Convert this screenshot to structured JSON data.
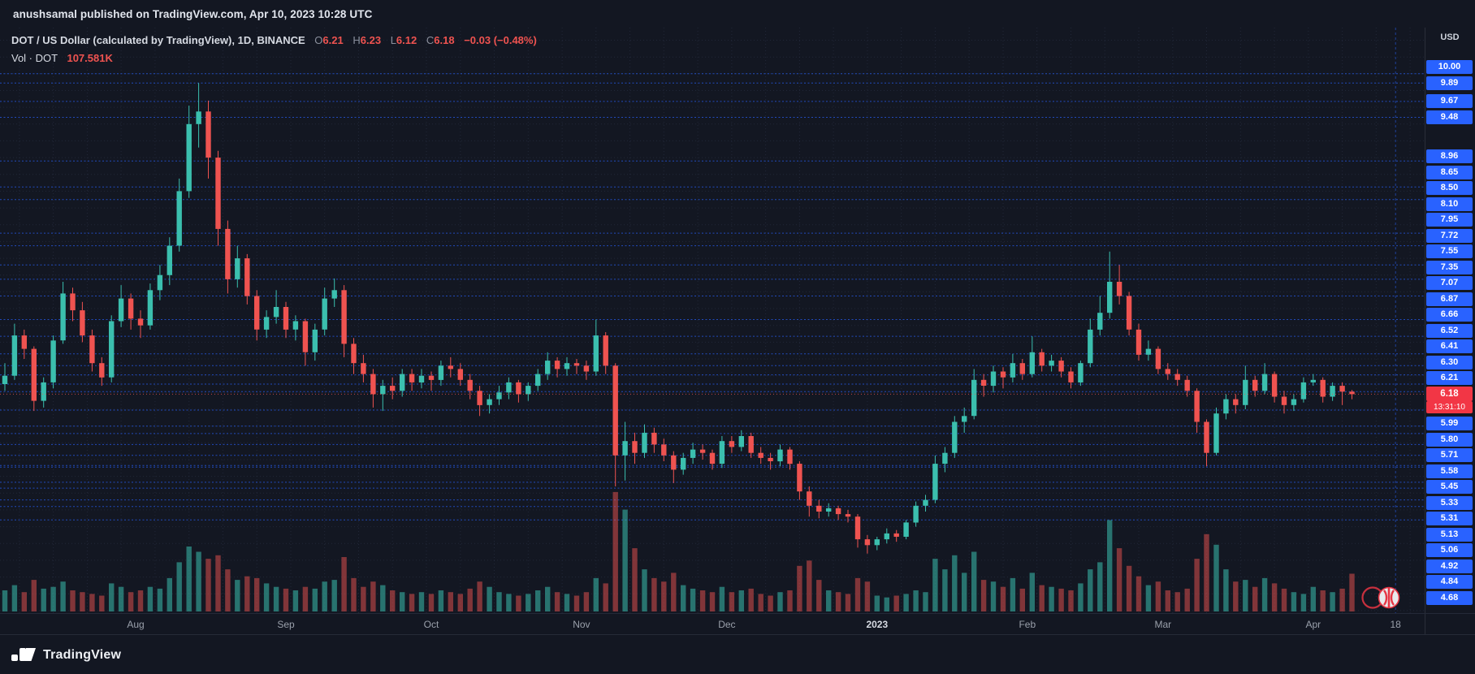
{
  "topbar": {
    "text": "anushsamal published on TradingView.com, Apr 10, 2023 10:28 UTC"
  },
  "legend": {
    "title": "DOT / US Dollar (calculated by TradingView), 1D, BINANCE",
    "ohlc": [
      {
        "k": "O",
        "v": "6.21"
      },
      {
        "k": "H",
        "v": "6.23"
      },
      {
        "k": "L",
        "v": "6.12"
      },
      {
        "k": "C",
        "v": "6.18"
      }
    ],
    "change": "−0.03 (−0.48%)",
    "vol_label": "Vol · DOT",
    "vol_value": "107.581K"
  },
  "axis": {
    "currency": "USD",
    "current_price": "6.18",
    "countdown": "13:31:10"
  },
  "footer": {
    "brand": "TradingView"
  },
  "colors": {
    "background": "#131722",
    "grid": "rgba(48,56,78,0.5)",
    "up": "#3bbfae",
    "down": "#ef5350",
    "vol_up": "rgba(59,191,174,0.55)",
    "vol_down": "rgba(239,83,80,0.5)",
    "level_line": "#2962ff",
    "label_bg": "#2962ff",
    "current_bg": "#f23645",
    "axis_border": "#2a2e39"
  },
  "chart_data": {
    "type": "candlestick",
    "title": "DOT / US Dollar (calculated by TradingView), 1D, BINANCE",
    "symbol": "DOT/USD",
    "interval": "1D",
    "exchange": "BINANCE",
    "legend_ohlc": {
      "open": 6.21,
      "high": 6.23,
      "low": 6.12,
      "close": 6.18,
      "change": -0.03,
      "change_pct": -0.48
    },
    "current_price": 6.18,
    "ylim": [
      3.57,
      10.55
    ],
    "x_slots": 147,
    "volume_height": 150,
    "price_line_levels": [
      10.0,
      9.89,
      9.67,
      9.48,
      8.96,
      8.65,
      8.5,
      8.1,
      7.95,
      7.72,
      7.55,
      7.35,
      7.07,
      6.87,
      6.66,
      6.52,
      6.41,
      6.3,
      6.21,
      5.99,
      5.8,
      5.71,
      5.58,
      5.45,
      5.33,
      5.31,
      5.13,
      5.06,
      4.92,
      4.84,
      4.68
    ],
    "x_ticks": [
      {
        "label": "Aug",
        "i": 13.5
      },
      {
        "label": "Sep",
        "i": 29
      },
      {
        "label": "Oct",
        "i": 44
      },
      {
        "label": "Nov",
        "i": 59.5
      },
      {
        "label": "Dec",
        "i": 74.5
      },
      {
        "label": "2023",
        "i": 90,
        "major": true
      },
      {
        "label": "Feb",
        "i": 105.5
      },
      {
        "label": "Mar",
        "i": 119.5
      },
      {
        "label": "Apr",
        "i": 135
      },
      {
        "label": "18",
        "i": 143.5,
        "vline": true
      }
    ],
    "candles": [
      [
        6.3,
        6.55,
        6.22,
        6.4
      ],
      [
        6.4,
        7.02,
        6.35,
        6.88
      ],
      [
        6.88,
        6.95,
        6.6,
        6.72
      ],
      [
        6.72,
        6.75,
        5.98,
        6.1
      ],
      [
        6.1,
        6.38,
        6.02,
        6.32
      ],
      [
        6.32,
        6.88,
        6.25,
        6.82
      ],
      [
        6.82,
        7.52,
        6.78,
        7.38
      ],
      [
        7.38,
        7.45,
        7.05,
        7.18
      ],
      [
        7.18,
        7.28,
        6.8,
        6.88
      ],
      [
        6.88,
        6.95,
        6.45,
        6.55
      ],
      [
        6.55,
        6.62,
        6.28,
        6.38
      ],
      [
        6.38,
        7.12,
        6.32,
        7.05
      ],
      [
        7.05,
        7.48,
        6.98,
        7.32
      ],
      [
        7.32,
        7.38,
        6.95,
        7.08
      ],
      [
        7.08,
        7.18,
        6.85,
        7.0
      ],
      [
        7.0,
        7.5,
        6.95,
        7.42
      ],
      [
        7.42,
        7.72,
        7.3,
        7.6
      ],
      [
        7.6,
        8.05,
        7.48,
        7.95
      ],
      [
        7.95,
        8.75,
        7.88,
        8.6
      ],
      [
        8.6,
        9.62,
        8.52,
        9.4
      ],
      [
        9.4,
        9.89,
        9.12,
        9.55
      ],
      [
        9.55,
        9.68,
        8.75,
        9.0
      ],
      [
        9.0,
        9.08,
        7.95,
        8.15
      ],
      [
        8.15,
        8.25,
        7.38,
        7.55
      ],
      [
        7.55,
        7.95,
        7.45,
        7.8
      ],
      [
        7.8,
        7.85,
        7.25,
        7.35
      ],
      [
        7.35,
        7.42,
        6.82,
        6.95
      ],
      [
        6.95,
        7.18,
        6.85,
        7.1
      ],
      [
        7.1,
        7.42,
        7.02,
        7.22
      ],
      [
        7.22,
        7.28,
        6.85,
        6.95
      ],
      [
        6.95,
        7.12,
        6.82,
        7.05
      ],
      [
        7.05,
        7.08,
        6.52,
        6.68
      ],
      [
        6.68,
        7.02,
        6.58,
        6.95
      ],
      [
        6.95,
        7.45,
        6.88,
        7.32
      ],
      [
        7.32,
        7.56,
        7.22,
        7.42
      ],
      [
        7.42,
        7.48,
        6.62,
        6.78
      ],
      [
        6.78,
        6.85,
        6.42,
        6.55
      ],
      [
        6.55,
        6.65,
        6.32,
        6.42
      ],
      [
        6.42,
        6.48,
        6.02,
        6.18
      ],
      [
        6.18,
        6.35,
        5.98,
        6.28
      ],
      [
        6.28,
        6.38,
        6.12,
        6.22
      ],
      [
        6.22,
        6.48,
        6.15,
        6.42
      ],
      [
        6.42,
        6.48,
        6.22,
        6.32
      ],
      [
        6.32,
        6.48,
        6.25,
        6.4
      ],
      [
        6.4,
        6.45,
        6.22,
        6.35
      ],
      [
        6.35,
        6.58,
        6.28,
        6.52
      ],
      [
        6.52,
        6.62,
        6.38,
        6.48
      ],
      [
        6.48,
        6.55,
        6.28,
        6.35
      ],
      [
        6.35,
        6.42,
        6.12,
        6.22
      ],
      [
        6.22,
        6.28,
        5.92,
        6.05
      ],
      [
        6.05,
        6.18,
        5.95,
        6.12
      ],
      [
        6.12,
        6.28,
        6.05,
        6.2
      ],
      [
        6.2,
        6.38,
        6.12,
        6.32
      ],
      [
        6.32,
        6.35,
        6.08,
        6.18
      ],
      [
        6.18,
        6.32,
        6.1,
        6.28
      ],
      [
        6.28,
        6.48,
        6.22,
        6.42
      ],
      [
        6.42,
        6.68,
        6.35,
        6.58
      ],
      [
        6.58,
        6.62,
        6.38,
        6.48
      ],
      [
        6.48,
        6.62,
        6.4,
        6.55
      ],
      [
        6.55,
        6.6,
        6.42,
        6.52
      ],
      [
        6.52,
        6.58,
        6.35,
        6.45
      ],
      [
        6.45,
        7.07,
        6.4,
        6.88
      ],
      [
        6.88,
        6.92,
        6.42,
        6.52
      ],
      [
        6.52,
        6.55,
        5.08,
        5.45
      ],
      [
        5.45,
        5.85,
        5.15,
        5.62
      ],
      [
        5.62,
        5.72,
        5.35,
        5.48
      ],
      [
        5.48,
        5.82,
        5.42,
        5.72
      ],
      [
        5.72,
        5.78,
        5.48,
        5.58
      ],
      [
        5.58,
        5.65,
        5.38,
        5.45
      ],
      [
        5.45,
        5.5,
        5.12,
        5.28
      ],
      [
        5.28,
        5.48,
        5.22,
        5.42
      ],
      [
        5.42,
        5.6,
        5.35,
        5.52
      ],
      [
        5.52,
        5.58,
        5.4,
        5.48
      ],
      [
        5.48,
        5.52,
        5.28,
        5.35
      ],
      [
        5.35,
        5.68,
        5.3,
        5.62
      ],
      [
        5.62,
        5.68,
        5.48,
        5.55
      ],
      [
        5.55,
        5.75,
        5.5,
        5.68
      ],
      [
        5.68,
        5.72,
        5.42,
        5.48
      ],
      [
        5.48,
        5.55,
        5.35,
        5.42
      ],
      [
        5.42,
        5.48,
        5.28,
        5.38
      ],
      [
        5.38,
        5.58,
        5.32,
        5.52
      ],
      [
        5.52,
        5.55,
        5.28,
        5.35
      ],
      [
        5.35,
        5.38,
        4.92,
        5.02
      ],
      [
        5.02,
        5.08,
        4.72,
        4.85
      ],
      [
        4.85,
        4.92,
        4.7,
        4.78
      ],
      [
        4.78,
        4.88,
        4.72,
        4.82
      ],
      [
        4.82,
        4.85,
        4.68,
        4.75
      ],
      [
        4.75,
        4.8,
        4.65,
        4.72
      ],
      [
        4.72,
        4.75,
        4.35,
        4.45
      ],
      [
        4.45,
        4.5,
        4.28,
        4.38
      ],
      [
        4.38,
        4.48,
        4.32,
        4.45
      ],
      [
        4.45,
        4.58,
        4.4,
        4.52
      ],
      [
        4.52,
        4.56,
        4.42,
        4.48
      ],
      [
        4.48,
        4.68,
        4.45,
        4.65
      ],
      [
        4.65,
        4.9,
        4.6,
        4.85
      ],
      [
        4.85,
        4.98,
        4.78,
        4.92
      ],
      [
        4.92,
        5.45,
        4.88,
        5.35
      ],
      [
        5.35,
        5.55,
        5.25,
        5.48
      ],
      [
        5.48,
        5.92,
        5.42,
        5.85
      ],
      [
        5.85,
        6.02,
        5.72,
        5.92
      ],
      [
        5.92,
        6.48,
        5.88,
        6.35
      ],
      [
        6.35,
        6.42,
        6.15,
        6.28
      ],
      [
        6.28,
        6.52,
        6.2,
        6.45
      ],
      [
        6.45,
        6.5,
        6.25,
        6.38
      ],
      [
        6.38,
        6.66,
        6.32,
        6.55
      ],
      [
        6.55,
        6.6,
        6.35,
        6.42
      ],
      [
        6.42,
        6.87,
        6.38,
        6.68
      ],
      [
        6.68,
        6.72,
        6.45,
        6.52
      ],
      [
        6.52,
        6.65,
        6.45,
        6.58
      ],
      [
        6.58,
        6.62,
        6.38,
        6.45
      ],
      [
        6.45,
        6.5,
        6.25,
        6.32
      ],
      [
        6.32,
        6.58,
        6.28,
        6.55
      ],
      [
        6.55,
        7.08,
        6.5,
        6.95
      ],
      [
        6.95,
        7.35,
        6.88,
        7.15
      ],
      [
        7.15,
        7.88,
        7.08,
        7.52
      ],
      [
        7.52,
        7.72,
        7.25,
        7.35
      ],
      [
        7.35,
        7.4,
        6.88,
        6.95
      ],
      [
        6.95,
        7.02,
        6.58,
        6.65
      ],
      [
        6.65,
        6.82,
        6.58,
        6.72
      ],
      [
        6.72,
        6.75,
        6.42,
        6.48
      ],
      [
        6.48,
        6.55,
        6.35,
        6.42
      ],
      [
        6.42,
        6.48,
        6.28,
        6.35
      ],
      [
        6.35,
        6.4,
        6.15,
        6.22
      ],
      [
        6.22,
        6.25,
        5.72,
        5.85
      ],
      [
        5.85,
        5.88,
        5.32,
        5.48
      ],
      [
        5.48,
        6.02,
        5.45,
        5.95
      ],
      [
        5.95,
        6.18,
        5.88,
        6.12
      ],
      [
        6.12,
        6.18,
        5.95,
        6.05
      ],
      [
        6.05,
        6.52,
        6.0,
        6.35
      ],
      [
        6.35,
        6.4,
        6.15,
        6.22
      ],
      [
        6.22,
        6.55,
        6.18,
        6.42
      ],
      [
        6.42,
        6.45,
        6.08,
        6.15
      ],
      [
        6.15,
        6.22,
        5.95,
        6.05
      ],
      [
        6.05,
        6.18,
        5.98,
        6.12
      ],
      [
        6.12,
        6.38,
        6.08,
        6.32
      ],
      [
        6.32,
        6.42,
        6.28,
        6.35
      ],
      [
        6.35,
        6.38,
        6.08,
        6.15
      ],
      [
        6.15,
        6.32,
        6.1,
        6.28
      ],
      [
        6.28,
        6.32,
        6.05,
        6.21
      ],
      [
        6.21,
        6.23,
        6.12,
        6.18
      ]
    ],
    "volumes": [
      60,
      75,
      55,
      90,
      65,
      70,
      85,
      60,
      55,
      50,
      45,
      80,
      70,
      55,
      60,
      70,
      65,
      95,
      140,
      185,
      170,
      150,
      160,
      120,
      90,
      100,
      95,
      80,
      70,
      65,
      60,
      70,
      65,
      85,
      90,
      155,
      95,
      70,
      85,
      75,
      60,
      55,
      50,
      55,
      50,
      60,
      55,
      50,
      65,
      85,
      70,
      55,
      50,
      45,
      50,
      60,
      70,
      55,
      50,
      45,
      55,
      95,
      80,
      340,
      290,
      180,
      120,
      95,
      85,
      110,
      75,
      65,
      60,
      55,
      70,
      55,
      60,
      65,
      50,
      45,
      55,
      60,
      130,
      145,
      90,
      60,
      55,
      50,
      95,
      85,
      45,
      40,
      45,
      50,
      60,
      55,
      150,
      120,
      160,
      110,
      170,
      90,
      85,
      70,
      95,
      65,
      110,
      75,
      70,
      65,
      60,
      80,
      120,
      140,
      260,
      180,
      130,
      100,
      75,
      85,
      60,
      55,
      65,
      150,
      220,
      190,
      120,
      85,
      90,
      70,
      95,
      80,
      65,
      55,
      50,
      70,
      60,
      55,
      65,
      107.581
    ]
  }
}
